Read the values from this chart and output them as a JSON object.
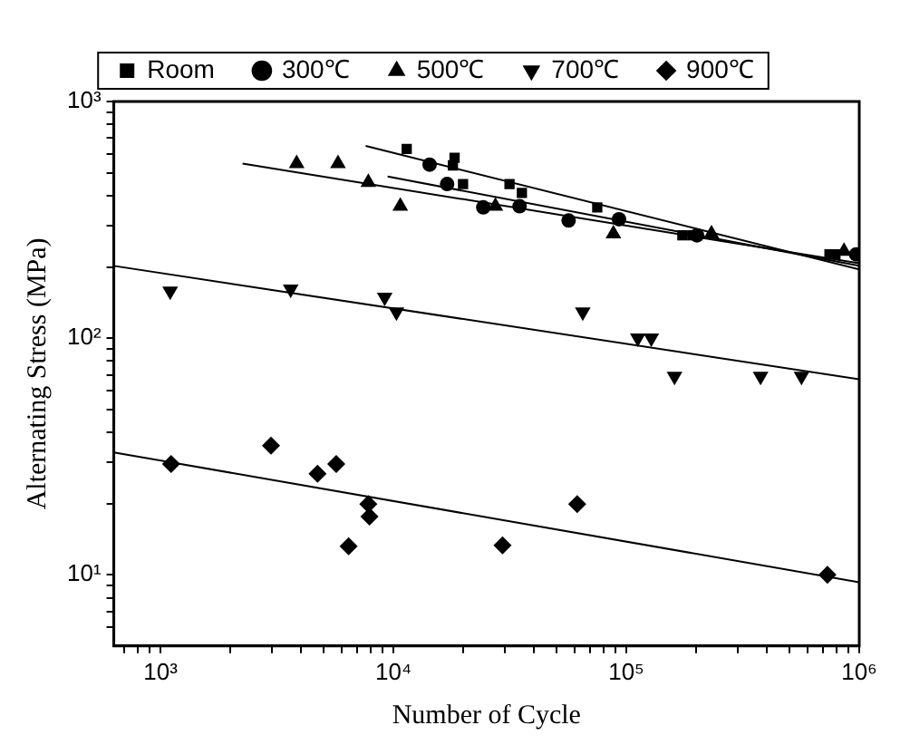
{
  "chart_data": {
    "type": "scatter",
    "xlabel": "Number of Cycle",
    "ylabel": "Alternating Stress (MPa)",
    "log": "xy",
    "grid": false,
    "legend": "top",
    "xlim": [
      630,
      1000000
    ],
    "ylim": [
      5,
      1000
    ],
    "xticks": [
      {
        "value": 700,
        "label": null
      },
      {
        "value": 800,
        "label": null
      },
      {
        "value": 900,
        "label": null
      },
      {
        "value": 1000,
        "label": "10³"
      },
      {
        "value": 2000,
        "label": null
      },
      {
        "value": 3000,
        "label": null
      },
      {
        "value": 4000,
        "label": null
      },
      {
        "value": 5000,
        "label": null
      },
      {
        "value": 6000,
        "label": null
      },
      {
        "value": 7000,
        "label": null
      },
      {
        "value": 8000,
        "label": null
      },
      {
        "value": 9000,
        "label": null
      },
      {
        "value": 10000,
        "label": "10⁴"
      },
      {
        "value": 20000,
        "label": null
      },
      {
        "value": 30000,
        "label": null
      },
      {
        "value": 40000,
        "label": null
      },
      {
        "value": 50000,
        "label": null
      },
      {
        "value": 60000,
        "label": null
      },
      {
        "value": 70000,
        "label": null
      },
      {
        "value": 80000,
        "label": null
      },
      {
        "value": 90000,
        "label": null
      },
      {
        "value": 100000,
        "label": "10⁵"
      },
      {
        "value": 200000,
        "label": null
      },
      {
        "value": 300000,
        "label": null
      },
      {
        "value": 400000,
        "label": null
      },
      {
        "value": 500000,
        "label": null
      },
      {
        "value": 600000,
        "label": null
      },
      {
        "value": 700000,
        "label": null
      },
      {
        "value": 800000,
        "label": null
      },
      {
        "value": 900000,
        "label": null
      },
      {
        "value": 1000000,
        "label": "10⁶"
      }
    ],
    "yticks": [
      {
        "value": 6,
        "label": null
      },
      {
        "value": 7,
        "label": null
      },
      {
        "value": 8,
        "label": null
      },
      {
        "value": 9,
        "label": null
      },
      {
        "value": 10,
        "label": "10¹"
      },
      {
        "value": 20,
        "label": null
      },
      {
        "value": 30,
        "label": null
      },
      {
        "value": 40,
        "label": null
      },
      {
        "value": 50,
        "label": null
      },
      {
        "value": 60,
        "label": null
      },
      {
        "value": 70,
        "label": null
      },
      {
        "value": 80,
        "label": null
      },
      {
        "value": 90,
        "label": null
      },
      {
        "value": 100,
        "label": "10²"
      },
      {
        "value": 200,
        "label": null
      },
      {
        "value": 300,
        "label": null
      },
      {
        "value": 400,
        "label": null
      },
      {
        "value": 500,
        "label": null
      },
      {
        "value": 600,
        "label": null
      },
      {
        "value": 700,
        "label": null
      },
      {
        "value": 800,
        "label": null
      },
      {
        "value": 900,
        "label": null
      },
      {
        "value": 1000,
        "label": "10³"
      }
    ],
    "series": [
      {
        "name": "Room",
        "type": "scatter",
        "marker": "square",
        "color": "#000000",
        "x": [
          11400,
          18300,
          18000,
          19900,
          31500,
          35600,
          75000,
          174000,
          192000,
          745000,
          790000
        ],
        "values": [
          630,
          578,
          537,
          448,
          448,
          411,
          357,
          272,
          272,
          226,
          226
        ]
      },
      {
        "name": "300℃",
        "type": "scatter",
        "marker": "circle",
        "color": "#000000",
        "x": [
          14300,
          17000,
          24300,
          34800,
          56500,
          93000,
          201000,
          970000
        ],
        "values": [
          541,
          448,
          357,
          361,
          314,
          318,
          272,
          226
        ]
      },
      {
        "name": "500℃",
        "type": "scatter",
        "marker": "triangle",
        "color": "#000000",
        "x": [
          3840,
          5780,
          7800,
          10700,
          27400,
          88000,
          232000,
          860000
        ],
        "values": [
          547,
          547,
          455,
          361,
          361,
          276,
          276,
          233
        ]
      },
      {
        "name": "700℃",
        "type": "scatter",
        "marker": "triangle-down",
        "color": "#000000",
        "x": [
          1100,
          3620,
          9170,
          10300,
          65000,
          112000,
          128000,
          161000,
          377000,
          565000
        ],
        "values": [
          158,
          161,
          149,
          129,
          129,
          100,
          100,
          69,
          69,
          69
        ]
      },
      {
        "name": "900℃",
        "type": "scatter",
        "marker": "diamond",
        "color": "#000000",
        "x": [
          1110,
          2980,
          4720,
          5680,
          7800,
          7890,
          6420,
          29400,
          61500,
          730000
        ],
        "values": [
          29.4,
          35.1,
          26.7,
          29.4,
          19.9,
          17.6,
          13.2,
          13.3,
          19.9,
          10
        ]
      },
      {
        "type": "line",
        "marker": "none",
        "color": "#000000",
        "x": [
          7600,
          1000000
        ],
        "values": [
          649,
          195
        ]
      },
      {
        "type": "line",
        "marker": "none",
        "color": "#000000",
        "x": [
          9440,
          1000000
        ],
        "values": [
          482,
          202
        ]
      },
      {
        "type": "line",
        "marker": "none",
        "color": "#000000",
        "x": [
          2250,
          1000000
        ],
        "values": [
          547,
          207
        ]
      },
      {
        "type": "line",
        "marker": "none",
        "color": "#000000",
        "x": [
          630,
          1000000
        ],
        "values": [
          202,
          67
        ]
      },
      {
        "type": "line",
        "marker": "none",
        "color": "#000000",
        "x": [
          630,
          1000000
        ],
        "values": [
          32.9,
          9.3
        ]
      }
    ]
  }
}
